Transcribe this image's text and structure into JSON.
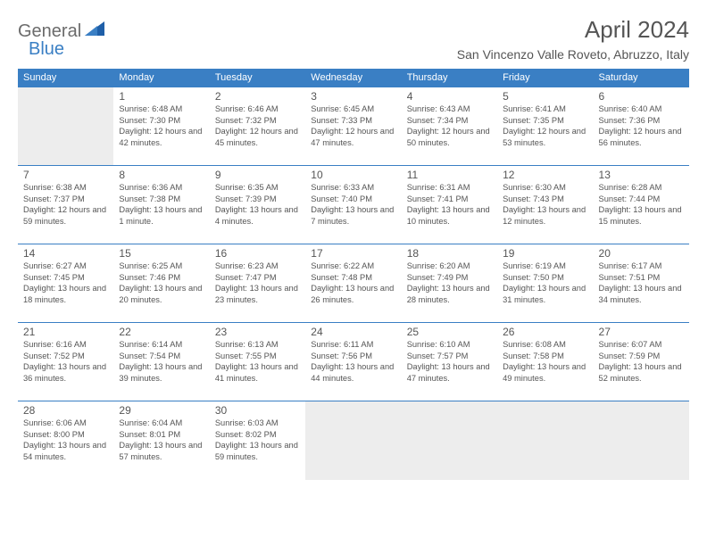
{
  "logo": {
    "general": "General",
    "blue": "Blue"
  },
  "title": "April 2024",
  "location": "San Vincenzo Valle Roveto, Abruzzo, Italy",
  "colors": {
    "header_bg": "#3a7fc4",
    "header_text": "#ffffff",
    "border": "#3a7fc4",
    "empty_bg": "#ededed",
    "body_text": "#555555",
    "logo_gray": "#6b6b6b",
    "logo_blue": "#3a7fc4"
  },
  "dayNames": [
    "Sunday",
    "Monday",
    "Tuesday",
    "Wednesday",
    "Thursday",
    "Friday",
    "Saturday"
  ],
  "weeks": [
    [
      null,
      {
        "n": "1",
        "sr": "6:48 AM",
        "ss": "7:30 PM",
        "dl": "12 hours and 42 minutes."
      },
      {
        "n": "2",
        "sr": "6:46 AM",
        "ss": "7:32 PM",
        "dl": "12 hours and 45 minutes."
      },
      {
        "n": "3",
        "sr": "6:45 AM",
        "ss": "7:33 PM",
        "dl": "12 hours and 47 minutes."
      },
      {
        "n": "4",
        "sr": "6:43 AM",
        "ss": "7:34 PM",
        "dl": "12 hours and 50 minutes."
      },
      {
        "n": "5",
        "sr": "6:41 AM",
        "ss": "7:35 PM",
        "dl": "12 hours and 53 minutes."
      },
      {
        "n": "6",
        "sr": "6:40 AM",
        "ss": "7:36 PM",
        "dl": "12 hours and 56 minutes."
      }
    ],
    [
      {
        "n": "7",
        "sr": "6:38 AM",
        "ss": "7:37 PM",
        "dl": "12 hours and 59 minutes."
      },
      {
        "n": "8",
        "sr": "6:36 AM",
        "ss": "7:38 PM",
        "dl": "13 hours and 1 minute."
      },
      {
        "n": "9",
        "sr": "6:35 AM",
        "ss": "7:39 PM",
        "dl": "13 hours and 4 minutes."
      },
      {
        "n": "10",
        "sr": "6:33 AM",
        "ss": "7:40 PM",
        "dl": "13 hours and 7 minutes."
      },
      {
        "n": "11",
        "sr": "6:31 AM",
        "ss": "7:41 PM",
        "dl": "13 hours and 10 minutes."
      },
      {
        "n": "12",
        "sr": "6:30 AM",
        "ss": "7:43 PM",
        "dl": "13 hours and 12 minutes."
      },
      {
        "n": "13",
        "sr": "6:28 AM",
        "ss": "7:44 PM",
        "dl": "13 hours and 15 minutes."
      }
    ],
    [
      {
        "n": "14",
        "sr": "6:27 AM",
        "ss": "7:45 PM",
        "dl": "13 hours and 18 minutes."
      },
      {
        "n": "15",
        "sr": "6:25 AM",
        "ss": "7:46 PM",
        "dl": "13 hours and 20 minutes."
      },
      {
        "n": "16",
        "sr": "6:23 AM",
        "ss": "7:47 PM",
        "dl": "13 hours and 23 minutes."
      },
      {
        "n": "17",
        "sr": "6:22 AM",
        "ss": "7:48 PM",
        "dl": "13 hours and 26 minutes."
      },
      {
        "n": "18",
        "sr": "6:20 AM",
        "ss": "7:49 PM",
        "dl": "13 hours and 28 minutes."
      },
      {
        "n": "19",
        "sr": "6:19 AM",
        "ss": "7:50 PM",
        "dl": "13 hours and 31 minutes."
      },
      {
        "n": "20",
        "sr": "6:17 AM",
        "ss": "7:51 PM",
        "dl": "13 hours and 34 minutes."
      }
    ],
    [
      {
        "n": "21",
        "sr": "6:16 AM",
        "ss": "7:52 PM",
        "dl": "13 hours and 36 minutes."
      },
      {
        "n": "22",
        "sr": "6:14 AM",
        "ss": "7:54 PM",
        "dl": "13 hours and 39 minutes."
      },
      {
        "n": "23",
        "sr": "6:13 AM",
        "ss": "7:55 PM",
        "dl": "13 hours and 41 minutes."
      },
      {
        "n": "24",
        "sr": "6:11 AM",
        "ss": "7:56 PM",
        "dl": "13 hours and 44 minutes."
      },
      {
        "n": "25",
        "sr": "6:10 AM",
        "ss": "7:57 PM",
        "dl": "13 hours and 47 minutes."
      },
      {
        "n": "26",
        "sr": "6:08 AM",
        "ss": "7:58 PM",
        "dl": "13 hours and 49 minutes."
      },
      {
        "n": "27",
        "sr": "6:07 AM",
        "ss": "7:59 PM",
        "dl": "13 hours and 52 minutes."
      }
    ],
    [
      {
        "n": "28",
        "sr": "6:06 AM",
        "ss": "8:00 PM",
        "dl": "13 hours and 54 minutes."
      },
      {
        "n": "29",
        "sr": "6:04 AM",
        "ss": "8:01 PM",
        "dl": "13 hours and 57 minutes."
      },
      {
        "n": "30",
        "sr": "6:03 AM",
        "ss": "8:02 PM",
        "dl": "13 hours and 59 minutes."
      },
      null,
      null,
      null,
      null
    ]
  ],
  "labels": {
    "sunrise": "Sunrise:",
    "sunset": "Sunset:",
    "daylight": "Daylight:"
  }
}
